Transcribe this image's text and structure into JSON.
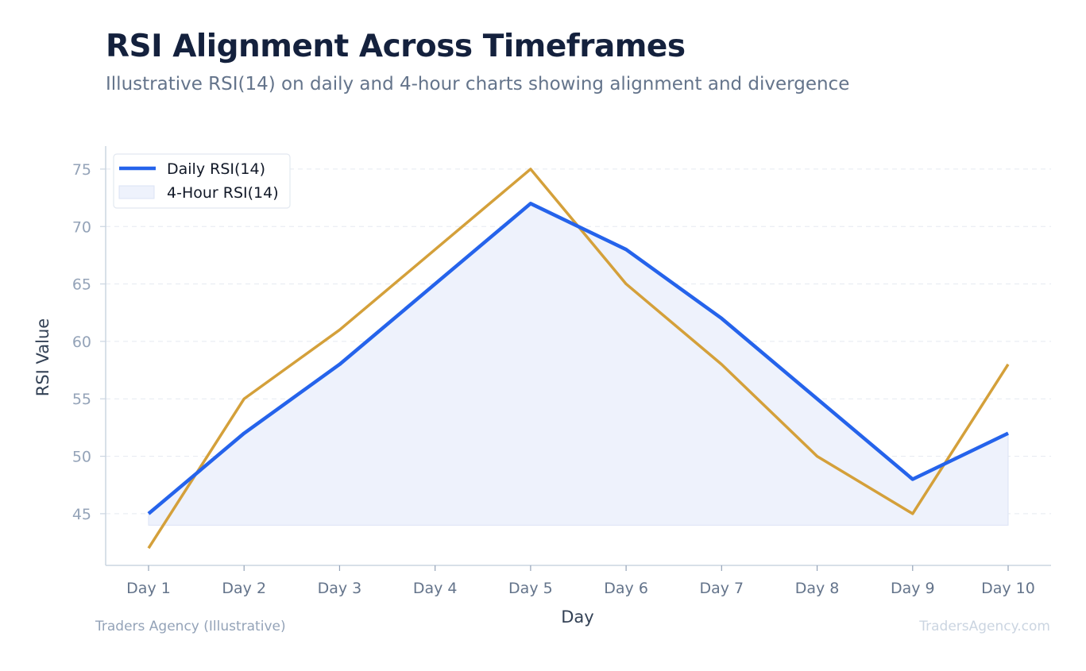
{
  "header": {
    "title": "RSI Alignment Across Timeframes",
    "subtitle": "Illustrative RSI(14) on daily and 4-hour charts showing alignment and divergence"
  },
  "footer": {
    "left": "Traders Agency (Illustrative)",
    "right": "TradersAgency.com"
  },
  "chart_data": {
    "type": "line",
    "title": "RSI Alignment Across Timeframes",
    "subtitle": "Illustrative RSI(14) on daily and 4-hour charts showing alignment and divergence",
    "xlabel": "Day",
    "ylabel": "RSI Value",
    "categories": [
      "Day 1",
      "Day 2",
      "Day 3",
      "Day 4",
      "Day 5",
      "Day 6",
      "Day 7",
      "Day 8",
      "Day 9",
      "Day 10"
    ],
    "ylim": [
      40.5,
      77
    ],
    "yticks": [
      45,
      50,
      55,
      60,
      65,
      70,
      75
    ],
    "fill_baseline": 44,
    "grid": true,
    "legend_position": "top-left",
    "series": [
      {
        "name": "Daily RSI(14)",
        "color": "#2563eb",
        "fill": "#eef2fc",
        "values": [
          45,
          52,
          58,
          65,
          72,
          68,
          62,
          55,
          48,
          52
        ]
      },
      {
        "name": "4-Hour RSI(14)",
        "color": "#d4a03a",
        "values": [
          42,
          55,
          61,
          68,
          75,
          65,
          58,
          50,
          45,
          58
        ]
      }
    ]
  }
}
